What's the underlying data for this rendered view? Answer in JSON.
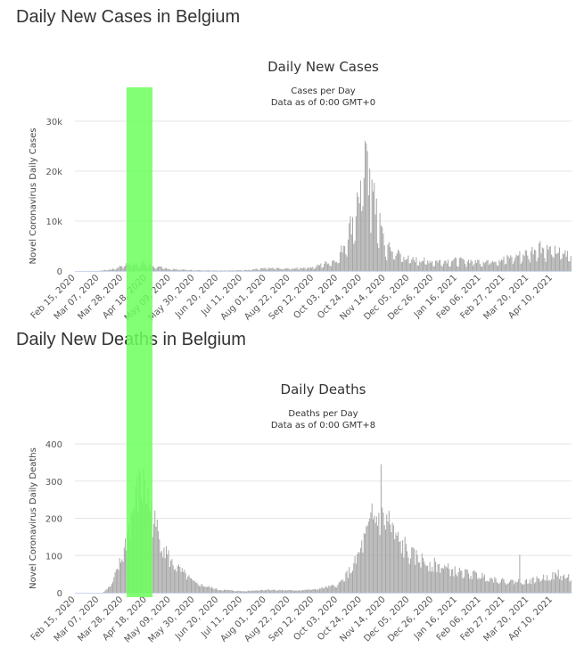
{
  "page": {
    "cases_heading": "Daily New Cases in Belgium",
    "deaths_heading": "Daily New Deaths in Belgium",
    "highlight_color": "#6cff5c",
    "bar_color": "#a6a6a6"
  },
  "chart_data": [
    {
      "type": "bar",
      "title": "Daily New Cases",
      "subtitle1": "Cases per Day",
      "subtitle2": "Data as of 0:00 GMT+0",
      "xlabel": "",
      "ylabel": "Novel Coronavirus Daily Cases",
      "ylim": [
        0,
        30000
      ],
      "yticks": [
        0,
        10000,
        20000,
        30000
      ],
      "ytick_labels": [
        "0",
        "10k",
        "20k",
        "30k"
      ],
      "grid": true,
      "x_start": "Feb 15, 2020",
      "x_end": "Apr 26, 2021",
      "x_ticks": [
        "Feb 15, 2020",
        "Mar 07, 2020",
        "Mar 28, 2020",
        "Apr 18, 2020",
        "May 09, 2020",
        "May 30, 2020",
        "Jun 20, 2020",
        "Jul 11, 2020",
        "Aug 01, 2020",
        "Aug 22, 2020",
        "Sep 12, 2020",
        "Oct 03, 2020",
        "Oct 24, 2020",
        "Nov 14, 2020",
        "Dec 05, 2020",
        "Dec 26, 2020",
        "Jan 16, 2021",
        "Feb 06, 2021",
        "Feb 27, 2021",
        "Mar 20, 2021",
        "Apr 10, 2021"
      ],
      "series": [
        {
          "profile": [
            [
              "Feb 15, 2020",
              0
            ],
            [
              "Mar 07, 2020",
              30
            ],
            [
              "Mar 20, 2020",
              400
            ],
            [
              "Mar 28, 2020",
              1200
            ],
            [
              "Apr 05, 2020",
              1600
            ],
            [
              "Apr 18, 2020",
              1500
            ],
            [
              "Apr 25, 2020",
              900
            ],
            [
              "May 09, 2020",
              400
            ],
            [
              "May 30, 2020",
              150
            ],
            [
              "Jun 20, 2020",
              100
            ],
            [
              "Jul 11, 2020",
              150
            ],
            [
              "Aug 01, 2020",
              550
            ],
            [
              "Aug 22, 2020",
              450
            ],
            [
              "Sep 12, 2020",
              800
            ],
            [
              "Oct 03, 2020",
              2500
            ],
            [
              "Oct 10, 2020",
              6500
            ],
            [
              "Oct 18, 2020",
              12000
            ],
            [
              "Oct 24, 2020",
              18000
            ],
            [
              "Oct 28, 2020",
              22000
            ],
            [
              "Nov 05, 2020",
              13000
            ],
            [
              "Nov 14, 2020",
              5000
            ],
            [
              "Dec 05, 2020",
              2400
            ],
            [
              "Dec 26, 2020",
              2000
            ],
            [
              "Jan 16, 2021",
              2200
            ],
            [
              "Feb 06, 2021",
              2000
            ],
            [
              "Feb 27, 2021",
              2500
            ],
            [
              "Mar 20, 2021",
              3800
            ],
            [
              "Mar 28, 2021",
              5000
            ],
            [
              "Apr 10, 2021",
              4200
            ],
            [
              "Apr 26, 2021",
              3300
            ]
          ],
          "peaks": [
            [
              "Apr 15, 2020",
              2300
            ],
            [
              "Oct 29, 2020",
              24000
            ],
            [
              "Oct 31, 2020",
              20500
            ],
            [
              "Nov 06, 2020",
              14500
            ],
            [
              "Mar 30, 2021",
              6000
            ]
          ]
        }
      ]
    },
    {
      "type": "bar",
      "title": "Daily Deaths",
      "subtitle1": "Deaths per Day",
      "subtitle2": "Data as of 0:00 GMT+8",
      "xlabel": "",
      "ylabel": "Novel Coronavirus Daily Deaths",
      "ylim": [
        0,
        400
      ],
      "yticks": [
        0,
        100,
        200,
        300,
        400
      ],
      "ytick_labels": [
        "0",
        "100",
        "200",
        "300",
        "400"
      ],
      "grid": true,
      "x_start": "Feb 15, 2020",
      "x_end": "Apr 26, 2021",
      "x_ticks": [
        "Feb 15, 2020",
        "Mar 07, 2020",
        "Mar 28, 2020",
        "Apr 18, 2020",
        "May 09, 2020",
        "May 30, 2020",
        "Jun 20, 2020",
        "Jul 11, 2020",
        "Aug 01, 2020",
        "Aug 22, 2020",
        "Sep 12, 2020",
        "Oct 03, 2020",
        "Oct 24, 2020",
        "Nov 14, 2020",
        "Dec 05, 2020",
        "Dec 26, 2020",
        "Jan 16, 2021",
        "Feb 06, 2021",
        "Feb 27, 2021",
        "Mar 20, 2021",
        "Apr 10, 2021"
      ],
      "series": [
        {
          "profile": [
            [
              "Feb 15, 2020",
              0
            ],
            [
              "Mar 10, 2020",
              0
            ],
            [
              "Mar 18, 2020",
              20
            ],
            [
              "Mar 28, 2020",
              100
            ],
            [
              "Apr 04, 2020",
              200
            ],
            [
              "Apr 10, 2020",
              270
            ],
            [
              "Apr 16, 2020",
              280
            ],
            [
              "Apr 25, 2020",
              180
            ],
            [
              "May 09, 2020",
              80
            ],
            [
              "May 30, 2020",
              25
            ],
            [
              "Jun 20, 2020",
              8
            ],
            [
              "Jul 11, 2020",
              4
            ],
            [
              "Aug 01, 2020",
              8
            ],
            [
              "Aug 22, 2020",
              6
            ],
            [
              "Sep 12, 2020",
              8
            ],
            [
              "Oct 03, 2020",
              20
            ],
            [
              "Oct 17, 2020",
              70
            ],
            [
              "Oct 28, 2020",
              150
            ],
            [
              "Nov 05, 2020",
              200
            ],
            [
              "Nov 14, 2020",
              190
            ],
            [
              "Nov 24, 2020",
              140
            ],
            [
              "Dec 05, 2020",
              100
            ],
            [
              "Dec 26, 2020",
              75
            ],
            [
              "Jan 16, 2021",
              55
            ],
            [
              "Feb 06, 2021",
              45
            ],
            [
              "Feb 27, 2021",
              30
            ],
            [
              "Mar 20, 2021",
              30
            ],
            [
              "Apr 10, 2021",
              45
            ],
            [
              "Apr 26, 2021",
              40
            ]
          ],
          "peaks": [
            [
              "Apr 12, 2020",
              320
            ],
            [
              "Apr 16, 2020",
              305
            ],
            [
              "Nov 10, 2020",
              345
            ],
            [
              "Nov 02, 2020",
              240
            ],
            [
              "Nov 17, 2020",
              220
            ],
            [
              "Dec 01, 2020",
              150
            ],
            [
              "Mar 12, 2021",
              102
            ],
            [
              "Apr 15, 2021",
              62
            ]
          ]
        }
      ]
    }
  ]
}
